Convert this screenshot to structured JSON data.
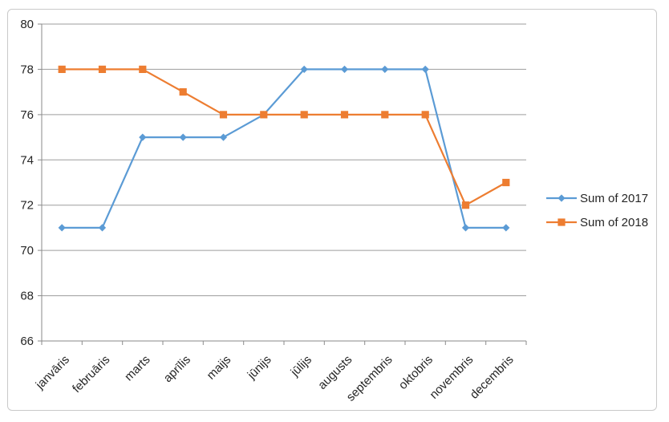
{
  "chart_data": {
    "type": "line",
    "categories": [
      "janvāris",
      "februāris",
      "marts",
      "aprīlis",
      "maijs",
      "jūnijs",
      "jūlijs",
      "augusts",
      "septembris",
      "oktobris",
      "novembris",
      "decembris"
    ],
    "series": [
      {
        "name": "Sum of 2017",
        "color": "#5B9BD5",
        "marker": "diamond",
        "values": [
          71,
          71,
          75,
          75,
          75,
          76,
          78,
          78,
          78,
          78,
          71,
          71
        ]
      },
      {
        "name": "Sum of 2018",
        "color": "#ED7D31",
        "marker": "square",
        "values": [
          78,
          78,
          78,
          77,
          76,
          76,
          76,
          76,
          76,
          76,
          72,
          73
        ]
      }
    ],
    "ylim": [
      66,
      80
    ],
    "yticks": [
      66,
      68,
      70,
      72,
      74,
      76,
      78,
      80
    ],
    "grid": true,
    "legend_position": "right",
    "colors": {
      "gridline": "#9d9d9d",
      "axis": "#8a8a8a",
      "text": "#262626",
      "frame_border": "#c9c9c9",
      "background": "#ffffff"
    }
  }
}
